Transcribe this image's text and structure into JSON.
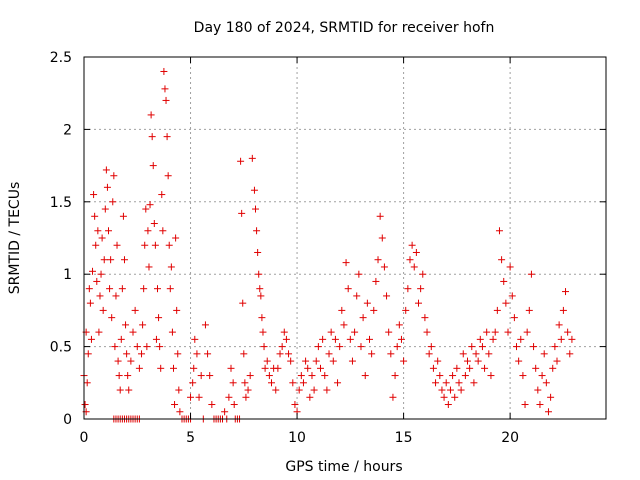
{
  "chart_data": {
    "type": "scatter",
    "title": "Day 180 of 2024, SRMTID for receiver hofn",
    "xlabel": "GPS time / hours",
    "ylabel": "SRMTID / TECUs",
    "xlim": [
      0,
      24.5
    ],
    "ylim": [
      0,
      2.5
    ],
    "xticks": [
      0,
      5,
      10,
      15,
      20
    ],
    "xtick_labels": [
      "0",
      "5",
      "10",
      "15",
      "20"
    ],
    "yticks": [
      0,
      0.5,
      1,
      1.5,
      2,
      2.5
    ],
    "ytick_labels": [
      "0",
      "0.5",
      "1",
      "1.5",
      "2",
      "2.5"
    ],
    "grid": true,
    "marker": "+",
    "color": "#e00000",
    "series": [
      {
        "name": "SRMTID",
        "points": [
          [
            0.0,
            0.3
          ],
          [
            0.05,
            0.1
          ],
          [
            0.1,
            0.05
          ],
          [
            0.1,
            0.6
          ],
          [
            0.15,
            0.25
          ],
          [
            0.2,
            0.45
          ],
          [
            0.25,
            0.9
          ],
          [
            0.3,
            0.8
          ],
          [
            0.35,
            0.55
          ],
          [
            0.4,
            1.02
          ],
          [
            0.45,
            1.55
          ],
          [
            0.5,
            1.4
          ],
          [
            0.55,
            1.2
          ],
          [
            0.6,
            0.95
          ],
          [
            0.65,
            1.3
          ],
          [
            0.7,
            0.6
          ],
          [
            0.75,
            0.85
          ],
          [
            0.8,
            1.0
          ],
          [
            0.85,
            1.25
          ],
          [
            0.9,
            0.75
          ],
          [
            0.95,
            1.1
          ],
          [
            1.0,
            1.45
          ],
          [
            1.05,
            1.72
          ],
          [
            1.1,
            1.6
          ],
          [
            1.15,
            1.3
          ],
          [
            1.2,
            0.9
          ],
          [
            1.25,
            1.1
          ],
          [
            1.3,
            0.7
          ],
          [
            1.35,
            1.5
          ],
          [
            1.4,
            1.68
          ],
          [
            1.45,
            0.5
          ],
          [
            1.5,
            0.85
          ],
          [
            1.55,
            1.2
          ],
          [
            1.6,
            0.4
          ],
          [
            1.65,
            0.3
          ],
          [
            1.7,
            0.2
          ],
          [
            1.75,
            0.55
          ],
          [
            1.8,
            0.9
          ],
          [
            1.85,
            1.4
          ],
          [
            1.9,
            1.1
          ],
          [
            1.95,
            0.65
          ],
          [
            2.0,
            0.45
          ],
          [
            2.05,
            0.3
          ],
          [
            2.1,
            0.2
          ],
          [
            1.4,
            0.0
          ],
          [
            1.5,
            0.0
          ],
          [
            1.6,
            0.0
          ],
          [
            1.7,
            0.0
          ],
          [
            1.8,
            0.0
          ],
          [
            1.9,
            0.0
          ],
          [
            2.0,
            0.0
          ],
          [
            2.1,
            0.0
          ],
          [
            2.2,
            0.0
          ],
          [
            2.3,
            0.0
          ],
          [
            2.4,
            0.0
          ],
          [
            2.5,
            0.0
          ],
          [
            2.6,
            0.0
          ],
          [
            2.2,
            0.4
          ],
          [
            2.3,
            0.6
          ],
          [
            2.4,
            0.75
          ],
          [
            2.5,
            0.5
          ],
          [
            2.6,
            0.35
          ],
          [
            2.7,
            0.45
          ],
          [
            2.75,
            0.65
          ],
          [
            2.8,
            0.9
          ],
          [
            2.85,
            1.2
          ],
          [
            2.9,
            1.45
          ],
          [
            2.95,
            0.5
          ],
          [
            3.0,
            1.3
          ],
          [
            3.05,
            1.05
          ],
          [
            3.1,
            1.48
          ],
          [
            3.15,
            2.1
          ],
          [
            3.2,
            1.95
          ],
          [
            3.25,
            1.75
          ],
          [
            3.3,
            1.35
          ],
          [
            3.35,
            1.2
          ],
          [
            3.4,
            0.55
          ],
          [
            3.45,
            0.9
          ],
          [
            3.5,
            0.7
          ],
          [
            3.55,
            0.5
          ],
          [
            3.6,
            0.35
          ],
          [
            3.65,
            1.55
          ],
          [
            3.7,
            1.3
          ],
          [
            3.75,
            2.4
          ],
          [
            3.8,
            2.28
          ],
          [
            3.85,
            2.2
          ],
          [
            3.9,
            1.95
          ],
          [
            3.95,
            1.68
          ],
          [
            4.0,
            1.2
          ],
          [
            4.05,
            0.9
          ],
          [
            4.1,
            1.05
          ],
          [
            4.15,
            0.6
          ],
          [
            4.2,
            0.35
          ],
          [
            4.25,
            0.1
          ],
          [
            4.3,
            1.25
          ],
          [
            4.35,
            0.75
          ],
          [
            4.4,
            0.45
          ],
          [
            4.45,
            0.2
          ],
          [
            4.5,
            0.05
          ],
          [
            4.6,
            0.0
          ],
          [
            4.7,
            0.0
          ],
          [
            4.8,
            0.0
          ],
          [
            4.9,
            0.0
          ],
          [
            5.0,
            0.0
          ],
          [
            5.0,
            0.15
          ],
          [
            5.1,
            0.25
          ],
          [
            5.15,
            0.35
          ],
          [
            5.2,
            0.55
          ],
          [
            5.3,
            0.45
          ],
          [
            5.4,
            0.15
          ],
          [
            5.5,
            0.3
          ],
          [
            5.6,
            0.0
          ],
          [
            5.7,
            0.65
          ],
          [
            5.8,
            0.45
          ],
          [
            5.9,
            0.3
          ],
          [
            6.0,
            0.1
          ],
          [
            6.1,
            0.0
          ],
          [
            6.2,
            0.0
          ],
          [
            6.3,
            0.0
          ],
          [
            6.4,
            0.0
          ],
          [
            6.5,
            0.0
          ],
          [
            6.6,
            0.05
          ],
          [
            6.7,
            0.0
          ],
          [
            6.8,
            0.15
          ],
          [
            6.9,
            0.35
          ],
          [
            7.0,
            0.25
          ],
          [
            7.05,
            0.1
          ],
          [
            7.1,
            0.0
          ],
          [
            7.2,
            0.0
          ],
          [
            7.3,
            0.0
          ],
          [
            7.35,
            1.78
          ],
          [
            7.4,
            1.42
          ],
          [
            7.45,
            0.8
          ],
          [
            7.5,
            0.45
          ],
          [
            7.55,
            0.25
          ],
          [
            7.6,
            0.15
          ],
          [
            7.7,
            0.2
          ],
          [
            7.8,
            0.3
          ],
          [
            7.9,
            1.8
          ],
          [
            8.0,
            1.58
          ],
          [
            8.05,
            1.45
          ],
          [
            8.1,
            1.3
          ],
          [
            8.15,
            1.15
          ],
          [
            8.2,
            1.0
          ],
          [
            8.25,
            0.9
          ],
          [
            8.3,
            0.85
          ],
          [
            8.35,
            0.7
          ],
          [
            8.4,
            0.6
          ],
          [
            8.45,
            0.5
          ],
          [
            8.5,
            0.35
          ],
          [
            8.6,
            0.4
          ],
          [
            8.7,
            0.3
          ],
          [
            8.8,
            0.25
          ],
          [
            8.9,
            0.35
          ],
          [
            9.0,
            0.2
          ],
          [
            9.1,
            0.35
          ],
          [
            9.2,
            0.45
          ],
          [
            9.3,
            0.5
          ],
          [
            9.4,
            0.6
          ],
          [
            9.5,
            0.55
          ],
          [
            9.6,
            0.45
          ],
          [
            9.7,
            0.4
          ],
          [
            9.8,
            0.25
          ],
          [
            9.9,
            0.1
          ],
          [
            10.0,
            0.05
          ],
          [
            10.1,
            0.2
          ],
          [
            10.2,
            0.3
          ],
          [
            10.3,
            0.25
          ],
          [
            10.4,
            0.4
          ],
          [
            10.5,
            0.35
          ],
          [
            10.6,
            0.15
          ],
          [
            10.7,
            0.3
          ],
          [
            10.8,
            0.2
          ],
          [
            10.9,
            0.4
          ],
          [
            11.0,
            0.5
          ],
          [
            11.1,
            0.35
          ],
          [
            11.2,
            0.55
          ],
          [
            11.3,
            0.3
          ],
          [
            11.4,
            0.2
          ],
          [
            11.5,
            0.45
          ],
          [
            11.6,
            0.6
          ],
          [
            11.7,
            0.4
          ],
          [
            11.8,
            0.55
          ],
          [
            11.9,
            0.25
          ],
          [
            12.0,
            0.5
          ],
          [
            12.1,
            0.75
          ],
          [
            12.2,
            0.65
          ],
          [
            12.3,
            1.08
          ],
          [
            12.4,
            0.9
          ],
          [
            12.5,
            0.55
          ],
          [
            12.6,
            0.4
          ],
          [
            12.7,
            0.6
          ],
          [
            12.8,
            0.85
          ],
          [
            12.9,
            1.0
          ],
          [
            13.0,
            0.5
          ],
          [
            13.1,
            0.7
          ],
          [
            13.2,
            0.3
          ],
          [
            13.3,
            0.8
          ],
          [
            13.4,
            0.55
          ],
          [
            13.5,
            0.45
          ],
          [
            13.6,
            0.75
          ],
          [
            13.7,
            0.95
          ],
          [
            13.8,
            1.1
          ],
          [
            13.9,
            1.4
          ],
          [
            14.0,
            1.25
          ],
          [
            14.1,
            1.05
          ],
          [
            14.2,
            0.85
          ],
          [
            14.3,
            0.6
          ],
          [
            14.4,
            0.45
          ],
          [
            14.5,
            0.15
          ],
          [
            14.6,
            0.3
          ],
          [
            14.7,
            0.5
          ],
          [
            14.8,
            0.65
          ],
          [
            14.9,
            0.55
          ],
          [
            15.0,
            0.4
          ],
          [
            15.1,
            0.75
          ],
          [
            15.2,
            0.9
          ],
          [
            15.3,
            1.1
          ],
          [
            15.4,
            1.2
          ],
          [
            15.5,
            1.05
          ],
          [
            15.6,
            1.15
          ],
          [
            15.7,
            0.8
          ],
          [
            15.8,
            0.9
          ],
          [
            15.9,
            1.0
          ],
          [
            16.0,
            0.7
          ],
          [
            16.1,
            0.6
          ],
          [
            16.2,
            0.45
          ],
          [
            16.3,
            0.5
          ],
          [
            16.4,
            0.35
          ],
          [
            16.5,
            0.25
          ],
          [
            16.6,
            0.4
          ],
          [
            16.7,
            0.3
          ],
          [
            16.8,
            0.2
          ],
          [
            16.9,
            0.15
          ],
          [
            17.0,
            0.25
          ],
          [
            17.1,
            0.1
          ],
          [
            17.2,
            0.2
          ],
          [
            17.3,
            0.3
          ],
          [
            17.4,
            0.15
          ],
          [
            17.5,
            0.35
          ],
          [
            17.6,
            0.25
          ],
          [
            17.7,
            0.2
          ],
          [
            17.8,
            0.45
          ],
          [
            17.9,
            0.3
          ],
          [
            18.0,
            0.4
          ],
          [
            18.1,
            0.35
          ],
          [
            18.2,
            0.5
          ],
          [
            18.3,
            0.25
          ],
          [
            18.4,
            0.45
          ],
          [
            18.5,
            0.4
          ],
          [
            18.6,
            0.55
          ],
          [
            18.7,
            0.5
          ],
          [
            18.8,
            0.35
          ],
          [
            18.9,
            0.6
          ],
          [
            19.0,
            0.45
          ],
          [
            19.1,
            0.3
          ],
          [
            19.2,
            0.55
          ],
          [
            19.3,
            0.6
          ],
          [
            19.4,
            0.75
          ],
          [
            19.5,
            1.3
          ],
          [
            19.6,
            1.1
          ],
          [
            19.7,
            0.95
          ],
          [
            19.8,
            0.8
          ],
          [
            19.9,
            0.6
          ],
          [
            20.0,
            1.05
          ],
          [
            20.1,
            0.85
          ],
          [
            20.2,
            0.7
          ],
          [
            20.3,
            0.5
          ],
          [
            20.4,
            0.4
          ],
          [
            20.5,
            0.55
          ],
          [
            20.6,
            0.3
          ],
          [
            20.7,
            0.1
          ],
          [
            20.8,
            0.6
          ],
          [
            20.9,
            0.75
          ],
          [
            21.0,
            1.0
          ],
          [
            21.1,
            0.5
          ],
          [
            21.2,
            0.35
          ],
          [
            21.3,
            0.2
          ],
          [
            21.4,
            0.1
          ],
          [
            21.5,
            0.3
          ],
          [
            21.6,
            0.45
          ],
          [
            21.7,
            0.25
          ],
          [
            21.8,
            0.05
          ],
          [
            21.9,
            0.15
          ],
          [
            22.0,
            0.35
          ],
          [
            22.1,
            0.5
          ],
          [
            22.2,
            0.4
          ],
          [
            22.3,
            0.65
          ],
          [
            22.4,
            0.55
          ],
          [
            22.5,
            0.75
          ],
          [
            22.6,
            0.88
          ],
          [
            22.7,
            0.6
          ],
          [
            22.8,
            0.45
          ],
          [
            22.9,
            0.55
          ]
        ]
      }
    ]
  }
}
